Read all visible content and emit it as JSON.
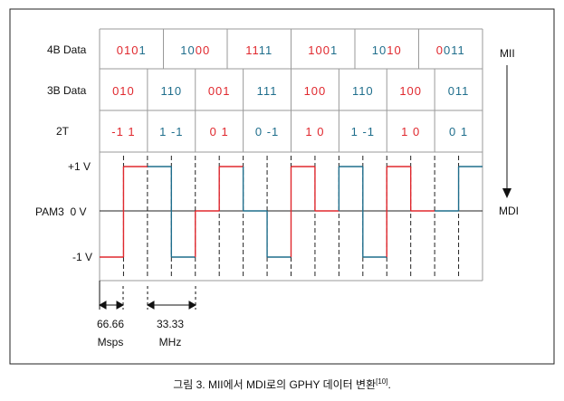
{
  "row_labels": {
    "b4": "4B Data",
    "b3": "3B Data",
    "t2": "2T"
  },
  "level_labels": {
    "plus": "+1 V",
    "zero": "PAM3  0 V",
    "minus": "-1 V"
  },
  "side_labels": {
    "top": "MII",
    "bottom": "MDI"
  },
  "groups_4b": [
    {
      "bits": [
        {
          "t": "0",
          "c": "r"
        },
        {
          "t": "1",
          "c": "r"
        },
        {
          "t": "0",
          "c": "r"
        },
        {
          "t": "1",
          "c": "b"
        }
      ]
    },
    {
      "bits": [
        {
          "t": "1",
          "c": "b"
        },
        {
          "t": "0",
          "c": "b"
        },
        {
          "t": "0",
          "c": "r"
        },
        {
          "t": "0",
          "c": "r"
        }
      ]
    },
    {
      "bits": [
        {
          "t": "1",
          "c": "r"
        },
        {
          "t": "1",
          "c": "r"
        },
        {
          "t": "1",
          "c": "b"
        },
        {
          "t": "1",
          "c": "b"
        }
      ]
    },
    {
      "bits": [
        {
          "t": "1",
          "c": "r"
        },
        {
          "t": "0",
          "c": "r"
        },
        {
          "t": "0",
          "c": "r"
        },
        {
          "t": "1",
          "c": "b"
        }
      ]
    },
    {
      "bits": [
        {
          "t": "1",
          "c": "b"
        },
        {
          "t": "0",
          "c": "b"
        },
        {
          "t": "1",
          "c": "r"
        },
        {
          "t": "0",
          "c": "r"
        }
      ]
    },
    {
      "bits": [
        {
          "t": "0",
          "c": "r"
        },
        {
          "t": "0",
          "c": "b"
        },
        {
          "t": "1",
          "c": "b"
        },
        {
          "t": "1",
          "c": "b"
        }
      ]
    }
  ],
  "groups_3b": [
    {
      "text": "010",
      "c": "r"
    },
    {
      "text": "110",
      "c": "b"
    },
    {
      "text": "001",
      "c": "r"
    },
    {
      "text": "111",
      "c": "b"
    },
    {
      "text": "100",
      "c": "r"
    },
    {
      "text": "110",
      "c": "b"
    },
    {
      "text": "100",
      "c": "r"
    },
    {
      "text": "011",
      "c": "b"
    }
  ],
  "groups_2t": [
    {
      "text": "-1 1",
      "c": "r"
    },
    {
      "text": "1 -1",
      "c": "b"
    },
    {
      "text": "0 1",
      "c": "r"
    },
    {
      "text": "0 -1",
      "c": "b"
    },
    {
      "text": "1 0",
      "c": "r"
    },
    {
      "text": "1 -1",
      "c": "b"
    },
    {
      "text": "1 0",
      "c": "r"
    },
    {
      "text": "0 1",
      "c": "b"
    }
  ],
  "symbols": [
    -1,
    1,
    1,
    -1,
    0,
    1,
    0,
    -1,
    1,
    0,
    1,
    -1,
    1,
    0,
    0,
    1
  ],
  "measure_labels": {
    "left_value": "66.66",
    "left_unit": "Msps",
    "right_value": "33.33",
    "right_unit": "MHz"
  },
  "caption": {
    "text": "그림 3. MII에서 MDI로의 GPHY 데이터 변환",
    "ref": "[10]",
    "end": "."
  },
  "colors": {
    "red": "#e0282e",
    "blue": "#1f6e8c"
  }
}
